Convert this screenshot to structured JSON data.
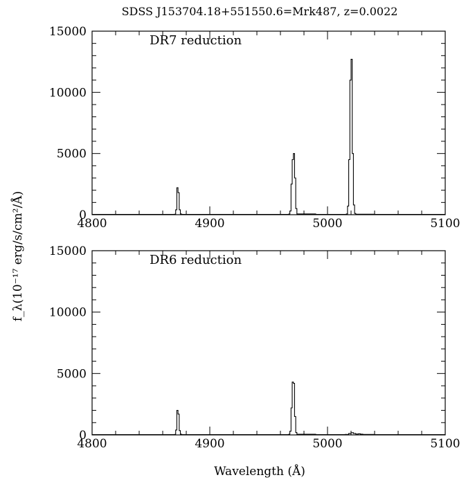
{
  "title": "SDSS J153704.18+551550.6=Mrk487, z=0.0022",
  "xlabel": "Wavelength (Å)",
  "ylabel": "f_λ(10⁻¹⁷ erg/s/cm²/Å)",
  "chart_data": [
    {
      "type": "line",
      "annotation": "DR7 reduction",
      "xlim": [
        4800,
        5100
      ],
      "ylim": [
        0,
        15000
      ],
      "xticks": [
        4800,
        4900,
        5000,
        5100
      ],
      "yticks": [
        0,
        5000,
        10000,
        15000
      ],
      "series": [
        {
          "x": [
            4800,
            4860,
            4870,
            4871,
            4872,
            4873,
            4874,
            4875,
            4876,
            4890,
            4960,
            4967,
            4968,
            4969,
            4970,
            4971,
            4972,
            4973,
            4974,
            4990,
            5015,
            5016,
            5017,
            5018,
            5019,
            5020,
            5021,
            5022,
            5023,
            5024,
            5040,
            5100
          ],
          "y": [
            30,
            30,
            40,
            400,
            2200,
            1800,
            400,
            60,
            30,
            30,
            30,
            50,
            300,
            2500,
            4500,
            5000,
            3000,
            500,
            60,
            30,
            30,
            60,
            700,
            4500,
            11000,
            12700,
            5000,
            800,
            100,
            40,
            30,
            30
          ]
        }
      ]
    },
    {
      "type": "line",
      "annotation": "DR6 reduction",
      "xlim": [
        4800,
        5100
      ],
      "ylim": [
        0,
        15000
      ],
      "xticks": [
        4800,
        4900,
        5000,
        5100
      ],
      "yticks": [
        0,
        5000,
        10000,
        15000
      ],
      "series": [
        {
          "x": [
            4800,
            4860,
            4870,
            4871,
            4872,
            4873,
            4874,
            4875,
            4876,
            4890,
            4960,
            4967,
            4968,
            4969,
            4970,
            4971,
            4972,
            4973,
            4974,
            4990,
            5010,
            5015,
            5018,
            5020,
            5022,
            5024,
            5026,
            5028,
            5030,
            5040,
            5100
          ],
          "y": [
            30,
            30,
            40,
            400,
            2000,
            1700,
            350,
            60,
            30,
            30,
            30,
            50,
            300,
            2200,
            4300,
            4200,
            1500,
            200,
            50,
            30,
            30,
            40,
            120,
            180,
            120,
            70,
            90,
            60,
            40,
            30,
            30
          ]
        }
      ]
    }
  ]
}
